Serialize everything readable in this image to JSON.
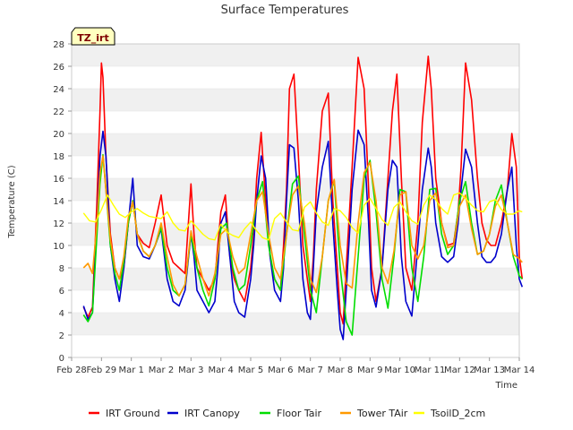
{
  "chart_data": {
    "type": "line",
    "title": "Surface Temperatures",
    "site_label": "TZ_irt",
    "xlabel": "Time",
    "ylabel": "Temperature (C)",
    "ylim": [
      0,
      28
    ],
    "yticks": [
      0,
      2,
      4,
      6,
      8,
      10,
      12,
      14,
      16,
      18,
      20,
      22,
      24,
      26,
      28
    ],
    "xlim": [
      0,
      15
    ],
    "xticks": [
      0,
      1,
      2,
      3,
      4,
      5,
      6,
      7,
      8,
      9,
      10,
      11,
      12,
      13,
      14,
      15
    ],
    "xtick_labels": [
      "Feb 28",
      "Feb 29",
      "Mar 1",
      "Mar 2",
      "Mar 3",
      "Mar 4",
      "Mar 5",
      "Mar 6",
      "Mar 7",
      "Mar 8",
      "Mar 9",
      "Mar 10",
      "Mar 11",
      "Mar 12",
      "Mar 13",
      "Mar 14"
    ],
    "grid": "horizontal bands",
    "legend_position": "bottom",
    "series": [
      {
        "name": "IRT Ground",
        "color": "#ff0000",
        "x": [
          0.4,
          0.55,
          0.7,
          0.85,
          0.95,
          1.0,
          1.05,
          1.15,
          1.3,
          1.45,
          1.6,
          1.75,
          1.9,
          2.05,
          2.2,
          2.4,
          2.6,
          2.8,
          3.0,
          3.2,
          3.4,
          3.6,
          3.8,
          4.0,
          4.1,
          4.2,
          4.4,
          4.6,
          4.8,
          4.9,
          5.0,
          5.15,
          5.3,
          5.45,
          5.6,
          5.8,
          6.0,
          6.1,
          6.2,
          6.35,
          6.5,
          6.65,
          6.8,
          7.0,
          7.1,
          7.2,
          7.3,
          7.45,
          7.6,
          7.75,
          7.9,
          8.0,
          8.1,
          8.2,
          8.4,
          8.6,
          8.75,
          8.9,
          9.0,
          9.1,
          9.2,
          9.4,
          9.6,
          9.8,
          9.95,
          10.05,
          10.2,
          10.4,
          10.6,
          10.75,
          10.9,
          11.05,
          11.2,
          11.4,
          11.6,
          11.75,
          11.95,
          12.05,
          12.2,
          12.4,
          12.6,
          12.8,
          12.95,
          13.05,
          13.2,
          13.4
        ],
        "y": [
          4.5,
          3.6,
          4.5,
          14,
          22,
          26.3,
          25,
          18,
          11,
          8,
          7,
          8,
          12,
          14,
          11,
          10.2,
          9.8,
          12,
          14.5,
          10,
          8.5,
          8,
          7.5,
          15.5,
          11,
          8,
          7,
          6,
          7,
          10,
          13,
          14.5,
          9,
          7,
          6,
          5,
          8,
          11,
          16,
          20.1,
          14,
          9,
          7,
          6,
          10,
          15,
          24,
          25.3,
          18,
          10,
          7,
          5,
          9,
          15,
          22,
          23.6,
          14,
          8,
          4,
          3,
          8,
          17,
          26.8,
          24,
          15,
          8,
          5,
          8,
          16,
          22,
          25.3,
          16,
          8,
          6,
          12,
          21,
          26.9,
          24,
          16,
          12,
          10,
          10.2,
          13,
          17,
          26.3,
          23
        ],
        "x2": [
          13.4,
          13.6,
          13.75,
          13.9,
          14.05,
          14.2,
          14.4,
          14.6,
          14.75,
          14.9,
          15.0,
          15.1
        ],
        "y2": [
          23,
          16,
          12,
          10.5,
          10,
          10,
          12,
          15,
          20,
          17,
          9,
          7
        ]
      },
      {
        "name": "IRT Canopy",
        "color": "#0000cc",
        "x": [
          0.4,
          0.55,
          0.7,
          0.85,
          0.95,
          1.05,
          1.15,
          1.3,
          1.45,
          1.6,
          1.75,
          1.9,
          2.05,
          2.2,
          2.4,
          2.6,
          2.8,
          3.0,
          3.2,
          3.4,
          3.6,
          3.8,
          4.0,
          4.1,
          4.2,
          4.4,
          4.6,
          4.8,
          4.9,
          5.0,
          5.15,
          5.3,
          5.45,
          5.6,
          5.8,
          6.0,
          6.1,
          6.2,
          6.35,
          6.5,
          6.65,
          6.8,
          7.0,
          7.1,
          7.2,
          7.3,
          7.45,
          7.6,
          7.75,
          7.9,
          8.0,
          8.1,
          8.2,
          8.4,
          8.6,
          8.75,
          8.9,
          9.0,
          9.1,
          9.2,
          9.4,
          9.6,
          9.8,
          9.95,
          10.05,
          10.2,
          10.4,
          10.6,
          10.75,
          10.9,
          11.05,
          11.2,
          11.4,
          11.6,
          11.75,
          11.95,
          12.05,
          12.2,
          12.4,
          12.6,
          12.8,
          12.95,
          13.05,
          13.2,
          13.4,
          13.6,
          13.75,
          13.9,
          14.05,
          14.2,
          14.4,
          14.6,
          14.75,
          14.9,
          15.0,
          15.1
        ],
        "y": [
          4.6,
          3.4,
          4,
          12,
          18,
          20.2,
          18,
          10,
          7,
          5,
          8,
          12,
          16,
          10,
          9,
          8.8,
          10,
          11.5,
          7,
          5,
          4.6,
          6,
          11,
          9,
          6,
          5,
          4,
          5,
          8,
          12,
          13,
          9,
          5,
          4,
          3.6,
          7,
          10,
          14,
          18,
          16,
          9,
          6,
          5,
          8,
          14,
          19,
          18.7,
          14,
          7,
          4,
          3.4,
          8,
          13,
          17,
          19.3,
          12,
          6,
          2.5,
          1.6,
          6,
          15,
          20.3,
          19,
          12,
          6,
          4.5,
          8,
          15,
          17.6,
          17,
          9,
          5,
          3.7,
          10,
          15,
          18.7,
          17,
          12,
          9,
          8.5,
          9,
          12,
          15,
          18.6,
          17,
          12,
          9,
          8.5,
          8.5,
          9,
          11,
          15,
          17,
          10,
          7,
          6.3
        ]
      },
      {
        "name": "Floor Tair",
        "color": "#00dd00",
        "x": [
          0.4,
          0.55,
          0.7,
          0.85,
          0.95,
          1.05,
          1.15,
          1.3,
          1.45,
          1.6,
          1.75,
          1.9,
          2.05,
          2.2,
          2.4,
          2.6,
          2.8,
          3.0,
          3.2,
          3.4,
          3.6,
          3.8,
          4.0,
          4.2,
          4.4,
          4.6,
          4.8,
          5.0,
          5.2,
          5.4,
          5.6,
          5.8,
          6.0,
          6.2,
          6.4,
          6.6,
          6.8,
          7.0,
          7.2,
          7.4,
          7.6,
          7.8,
          8.0,
          8.2,
          8.4,
          8.6,
          8.8,
          9.0,
          9.2,
          9.4,
          9.6,
          9.8,
          10.0,
          10.2,
          10.4,
          10.6,
          10.8,
          11.0,
          11.2,
          11.4,
          11.6,
          11.8,
          12.0,
          12.2,
          12.4,
          12.6,
          12.8,
          13.0,
          13.2,
          13.4,
          13.6,
          13.8,
          14.0,
          14.2,
          14.4,
          14.6,
          14.8,
          15.0,
          15.1
        ],
        "y": [
          3.8,
          3.2,
          4,
          11,
          15.5,
          18.1,
          15,
          10,
          7.5,
          6,
          8.5,
          12,
          14,
          11,
          9.5,
          9,
          10,
          11.6,
          8,
          6,
          5.5,
          6.5,
          11,
          8,
          6,
          4.6,
          7,
          11.5,
          12,
          8,
          6,
          6.5,
          10,
          14,
          15.7,
          10,
          7,
          6,
          11,
          15.5,
          16.2,
          11,
          6,
          4,
          9,
          14,
          15.8,
          8,
          3.2,
          2,
          9,
          16,
          17.6,
          13,
          7,
          4.4,
          9,
          15,
          14.8,
          8,
          5,
          9,
          15,
          15.1,
          11,
          9.2,
          10,
          14,
          15.7,
          12,
          9.2,
          9.5,
          11,
          14,
          15.4,
          12,
          9,
          7.3,
          7
        ]
      },
      {
        "name": "Tower TAir",
        "color": "#ff9900",
        "x": [
          0.4,
          0.55,
          0.7,
          0.85,
          0.95,
          1.05,
          1.15,
          1.3,
          1.45,
          1.6,
          1.75,
          1.9,
          2.05,
          2.2,
          2.4,
          2.6,
          2.8,
          3.0,
          3.2,
          3.4,
          3.6,
          3.8,
          4.0,
          4.2,
          4.4,
          4.6,
          4.8,
          5.0,
          5.2,
          5.4,
          5.6,
          5.8,
          6.0,
          6.2,
          6.4,
          6.6,
          6.8,
          7.0,
          7.2,
          7.4,
          7.6,
          7.8,
          8.0,
          8.2,
          8.4,
          8.6,
          8.8,
          9.0,
          9.2,
          9.4,
          9.6,
          9.8,
          10.0,
          10.2,
          10.4,
          10.6,
          10.8,
          11.0,
          11.2,
          11.4,
          11.6,
          11.8,
          12.0,
          12.2,
          12.4,
          12.6,
          12.8,
          13.0,
          13.2,
          13.4,
          13.6,
          13.8,
          14.0,
          14.2,
          14.4,
          14.6,
          14.8,
          15.0,
          15.1
        ],
        "y": [
          8,
          8.4,
          7.5,
          12,
          16.5,
          18,
          15,
          10.5,
          8,
          7,
          9,
          12.5,
          13.9,
          11,
          9.5,
          9,
          10,
          12,
          9,
          6.5,
          5.5,
          6.5,
          11.3,
          9,
          7,
          5.5,
          7.5,
          11,
          11.5,
          9,
          7.5,
          8,
          11,
          14,
          14.8,
          11,
          8,
          7,
          11,
          14.5,
          15.3,
          12,
          7,
          5.8,
          9,
          14,
          15.9,
          10,
          6.6,
          6.2,
          12,
          16.5,
          17.4,
          14,
          8,
          6.6,
          9.5,
          14.5,
          14.8,
          10,
          8.8,
          10,
          14,
          14.7,
          12,
          9.8,
          10,
          13.5,
          14.5,
          11.5,
          9.2,
          9.5,
          11,
          13.5,
          14.5,
          12,
          9.2,
          8.8,
          8.5
        ]
      },
      {
        "name": "TsoilD_2cm",
        "color": "#ffff00",
        "x": [
          0.4,
          0.6,
          0.8,
          1.0,
          1.2,
          1.4,
          1.6,
          1.8,
          2.0,
          2.2,
          2.4,
          2.6,
          2.8,
          3.0,
          3.2,
          3.4,
          3.6,
          3.8,
          4.0,
          4.2,
          4.4,
          4.6,
          4.8,
          5.0,
          5.2,
          5.4,
          5.6,
          5.8,
          6.0,
          6.2,
          6.4,
          6.6,
          6.8,
          7.0,
          7.2,
          7.4,
          7.6,
          7.8,
          8.0,
          8.2,
          8.4,
          8.6,
          8.8,
          9.0,
          9.2,
          9.4,
          9.6,
          9.8,
          10.0,
          10.2,
          10.4,
          10.6,
          10.8,
          11.0,
          11.2,
          11.4,
          11.6,
          11.8,
          12.0,
          12.2,
          12.4,
          12.6,
          12.8,
          13.0,
          13.2,
          13.4,
          13.6,
          13.8,
          14.0,
          14.2,
          14.4,
          14.6,
          14.8,
          15.0,
          15.1
        ],
        "y": [
          12.9,
          12.2,
          12.1,
          13.2,
          14.5,
          13.6,
          12.8,
          12.5,
          13,
          13.3,
          12.9,
          12.6,
          12.5,
          12.4,
          13,
          12,
          11.4,
          11.3,
          12.2,
          11.6,
          11,
          10.6,
          10.5,
          11.9,
          11.2,
          10.9,
          10.7,
          11.5,
          12.1,
          11.3,
          10.7,
          10.5,
          12.4,
          12.9,
          12.1,
          11.4,
          11.3,
          13.4,
          13.9,
          12.9,
          12.1,
          11.8,
          13.3,
          13.1,
          12.5,
          11.6,
          11.1,
          13.6,
          14.2,
          13.3,
          12.3,
          11.8,
          13.4,
          13.9,
          13,
          12.2,
          11.9,
          13.6,
          14.5,
          14.1,
          13.3,
          12.8,
          14.5,
          14.7,
          14.2,
          13.6,
          13.1,
          13,
          13.9,
          14.1,
          13.2,
          12.8,
          12.8,
          13.1,
          13
        ]
      }
    ]
  }
}
